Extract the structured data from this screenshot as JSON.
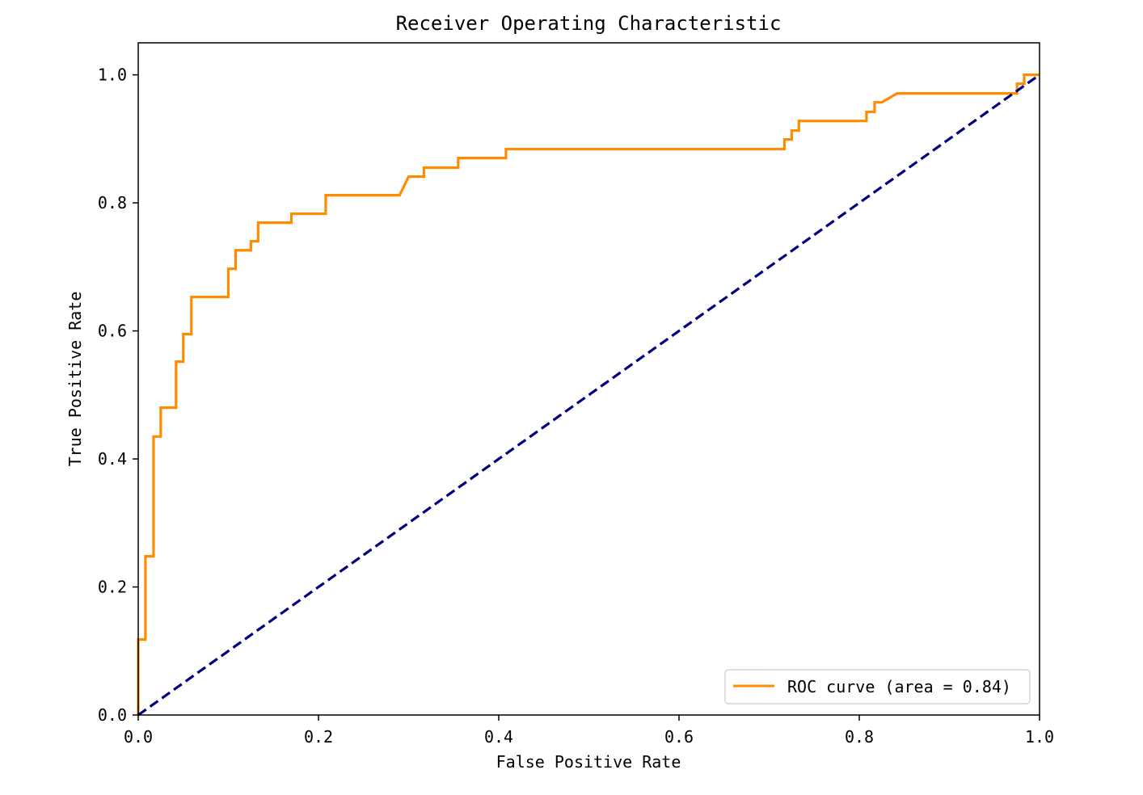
{
  "chart_data": {
    "type": "line",
    "title": "Receiver Operating Characteristic",
    "xlabel": "False Positive Rate",
    "ylabel": "True Positive Rate",
    "xlim": [
      0.0,
      1.0
    ],
    "ylim": [
      0.0,
      1.05
    ],
    "x_ticks": [
      0.0,
      0.2,
      0.4,
      0.6,
      0.8,
      1.0
    ],
    "y_ticks": [
      0.0,
      0.2,
      0.4,
      0.6,
      0.8,
      1.0
    ],
    "x_tick_labels": [
      "0.0",
      "0.2",
      "0.4",
      "0.6",
      "0.8",
      "1.0"
    ],
    "y_tick_labels": [
      "0.0",
      "0.2",
      "0.4",
      "0.6",
      "0.8",
      "1.0"
    ],
    "grid": false,
    "legend_placement": "lower-right",
    "series": [
      {
        "name": "ROC curve (area = 0.84)",
        "color": "#ff8c00",
        "style": "solid",
        "x": [
          0.0,
          0.0,
          0.008,
          0.008,
          0.017,
          0.017,
          0.025,
          0.025,
          0.033,
          0.033,
          0.042,
          0.042,
          0.05,
          0.05,
          0.059,
          0.059,
          0.066,
          0.066,
          0.1,
          0.1,
          0.108,
          0.108,
          0.125,
          0.125,
          0.133,
          0.133,
          0.17,
          0.17,
          0.208,
          0.208,
          0.29,
          0.3,
          0.3,
          0.317,
          0.317,
          0.355,
          0.355,
          0.408,
          0.408,
          0.717,
          0.717,
          0.725,
          0.725,
          0.733,
          0.733,
          0.808,
          0.808,
          0.817,
          0.817,
          0.825,
          0.842,
          0.842,
          0.975,
          0.975,
          0.983,
          0.983,
          1.0
        ],
        "y": [
          0.0,
          0.118,
          0.118,
          0.248,
          0.248,
          0.435,
          0.435,
          0.48,
          0.48,
          0.48,
          0.48,
          0.552,
          0.552,
          0.595,
          0.595,
          0.653,
          0.653,
          0.653,
          0.653,
          0.697,
          0.697,
          0.726,
          0.726,
          0.74,
          0.74,
          0.769,
          0.769,
          0.783,
          0.783,
          0.812,
          0.812,
          0.841,
          0.841,
          0.841,
          0.855,
          0.855,
          0.87,
          0.87,
          0.884,
          0.884,
          0.899,
          0.899,
          0.913,
          0.913,
          0.928,
          0.928,
          0.942,
          0.942,
          0.957,
          0.957,
          0.971,
          0.971,
          0.971,
          0.986,
          0.986,
          1.0,
          1.0
        ]
      },
      {
        "name": "",
        "color": "#000080",
        "style": "dashed",
        "x": [
          0.0,
          1.0
        ],
        "y": [
          0.0,
          1.0
        ]
      }
    ]
  }
}
